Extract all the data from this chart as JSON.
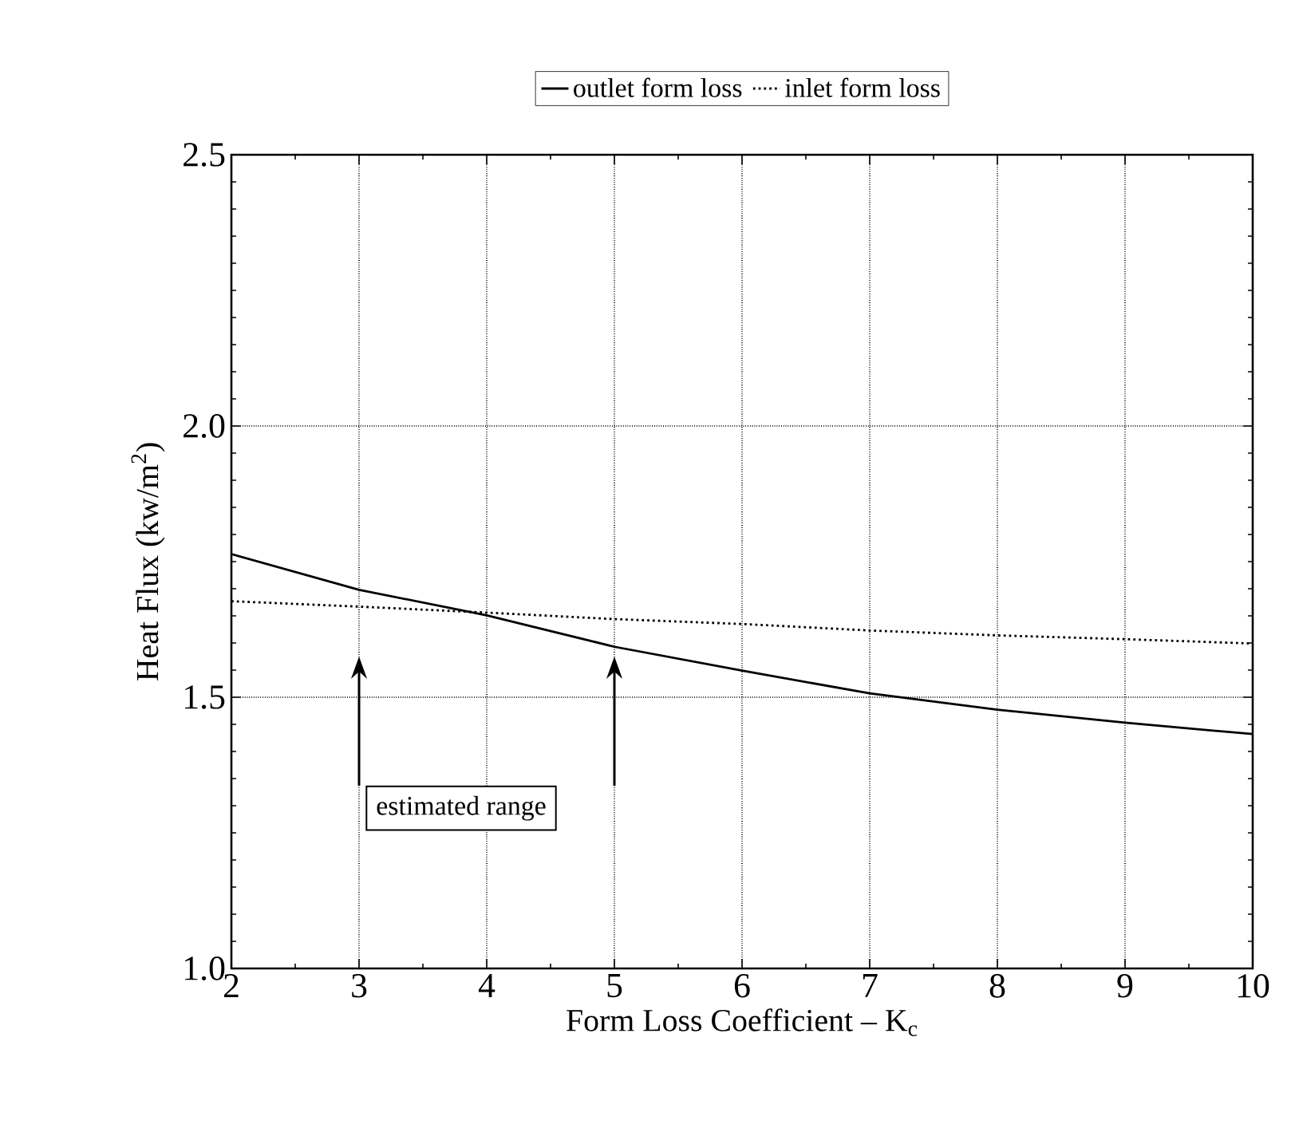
{
  "chart_data": {
    "type": "line",
    "xlabel": "Form Loss Coefficient – K$_{c}$",
    "ylabel": "Heat Flux (kw/m$^{2}$)",
    "x": [
      2,
      3,
      4,
      5,
      6,
      7,
      8,
      9,
      10
    ],
    "series": [
      {
        "name": "outlet form loss",
        "color": "#000000",
        "line_style": "solid",
        "values": [
          1.764,
          1.698,
          1.651,
          1.593,
          1.549,
          1.507,
          1.477,
          1.453,
          1.432
        ]
      },
      {
        "name": "inlet form loss",
        "color": "#000000",
        "line_style": "dotted",
        "values": [
          1.677,
          1.667,
          1.656,
          1.644,
          1.635,
          1.623,
          1.614,
          1.607,
          1.599
        ]
      }
    ],
    "xlim": [
      2,
      10
    ],
    "xticks": [
      2,
      3,
      4,
      5,
      6,
      7,
      8,
      9,
      10
    ],
    "ylim": [
      1.0,
      2.5
    ],
    "yticks": [
      {
        "value": 1.0,
        "label": "1.0"
      },
      {
        "value": 1.5,
        "label": "1.5"
      },
      {
        "value": 2.0,
        "label": "2.0"
      },
      {
        "value": 2.5,
        "label": "2.5"
      }
    ],
    "grid": true,
    "legend": "top",
    "marker": "none",
    "annotations": [
      "estimated range"
    ]
  }
}
